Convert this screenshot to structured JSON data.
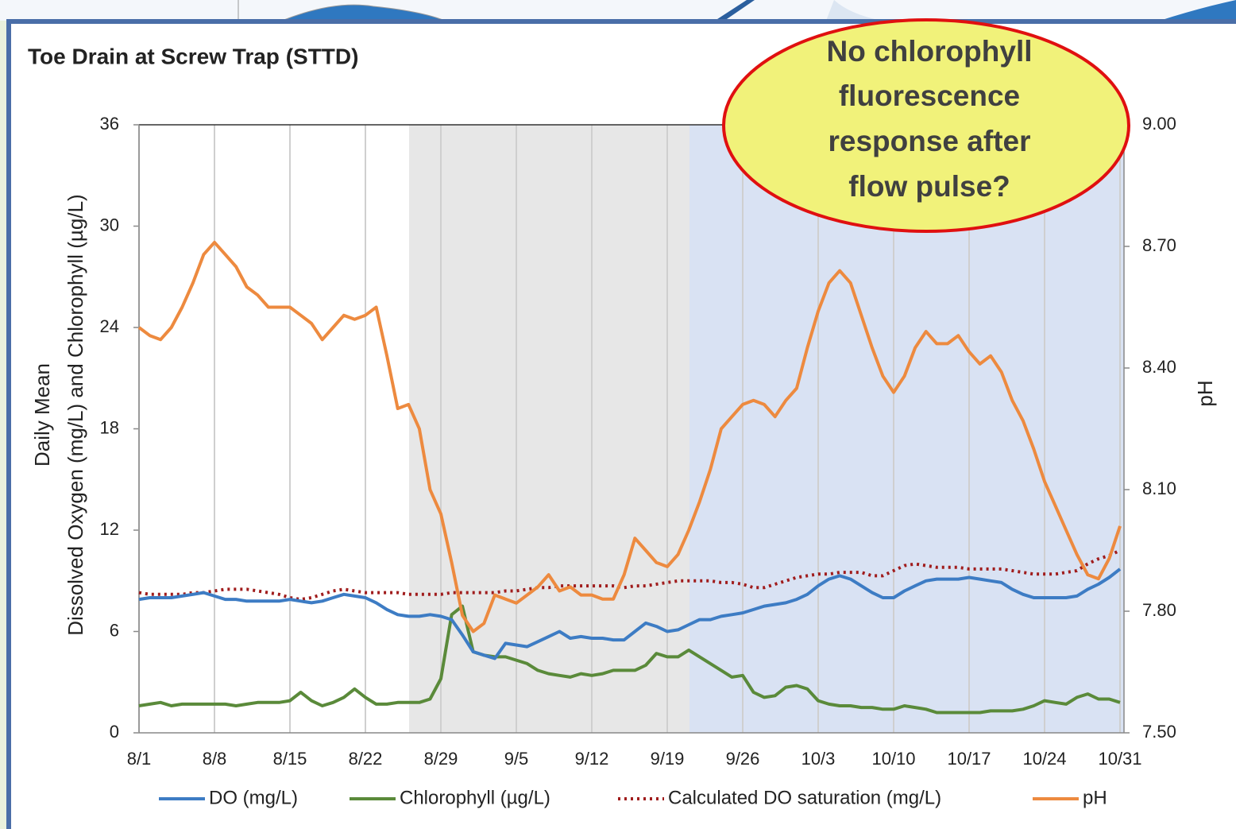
{
  "chart_data": {
    "type": "line",
    "title": "Toe Drain at Screw Trap (STTD)",
    "ylabel": [
      "Daily Mean",
      "Dissolved Oxygen (mg/L) and Chlorophyll (µg/L)"
    ],
    "y2label": "pH",
    "annotation": [
      "No chlorophyll",
      "fluorescence",
      "response after",
      "flow pulse?"
    ],
    "categories": [
      "8/1",
      null,
      null,
      null,
      null,
      null,
      null,
      "8/8",
      null,
      null,
      null,
      null,
      null,
      null,
      "8/15",
      null,
      null,
      null,
      null,
      null,
      null,
      "8/22",
      null,
      null,
      null,
      null,
      null,
      null,
      "8/29",
      null,
      null,
      null,
      null,
      null,
      null,
      "9/5",
      null,
      null,
      null,
      null,
      null,
      null,
      "9/12",
      null,
      null,
      null,
      null,
      null,
      null,
      "9/19",
      null,
      null,
      null,
      null,
      null,
      null,
      "9/26",
      null,
      null,
      null,
      null,
      null,
      null,
      "10/3",
      null,
      null,
      null,
      null,
      null,
      null,
      "10/10",
      null,
      null,
      null,
      null,
      null,
      null,
      "10/17",
      null,
      null,
      null,
      null,
      null,
      null,
      "10/24",
      null,
      null,
      null,
      null,
      null,
      null,
      "10/31"
    ],
    "ylim": [
      0,
      36
    ],
    "yticks": [
      0,
      6,
      12,
      18,
      24,
      30,
      36
    ],
    "y2lim": [
      7.5,
      9.0
    ],
    "y2ticks": [
      {
        "value": 7.5,
        "label": "7.50"
      },
      {
        "value": 7.8,
        "label": "7.80"
      },
      {
        "value": 8.1,
        "label": "8.10"
      },
      {
        "value": 8.4,
        "label": "8.40"
      },
      {
        "value": 8.7,
        "label": "8.70"
      },
      {
        "value": 9.0,
        "label": "9.00"
      }
    ],
    "grid": true,
    "legend": "bottom",
    "series": [
      {
        "name": "DO (mg/L)",
        "color": "#3d7cc4",
        "dash": "solid",
        "values": [
          7.9,
          8.0,
          8.0,
          8.0,
          8.1,
          8.2,
          8.3,
          8.1,
          7.9,
          7.9,
          7.8,
          7.8,
          7.8,
          7.8,
          7.9,
          7.8,
          7.7,
          7.8,
          8.0,
          8.2,
          8.1,
          8.0,
          7.7,
          7.3,
          7.0,
          6.9,
          6.9,
          7.0,
          6.9,
          6.7,
          5.8,
          4.8,
          4.6,
          4.4,
          5.3,
          5.2,
          5.1,
          5.4,
          5.7,
          6.0,
          5.6,
          5.7,
          5.6,
          5.6,
          5.5,
          5.5,
          6.0,
          6.5,
          6.3,
          6.0,
          6.1,
          6.4,
          6.7,
          6.7,
          6.9,
          7.0,
          7.1,
          7.3,
          7.5,
          7.6,
          7.7,
          7.9,
          8.2,
          8.7,
          9.1,
          9.3,
          9.1,
          8.7,
          8.3,
          8.0,
          8.0,
          8.4,
          8.7,
          9.0,
          9.1,
          9.1,
          9.1,
          9.2,
          9.1,
          9.0,
          8.9,
          8.5,
          8.2,
          8.0,
          8.0,
          8.0,
          8.0,
          8.1,
          8.5,
          8.8,
          9.2,
          9.7
        ]
      },
      {
        "name": "Chlorophyll (µg/L)",
        "color": "#5a8a3a",
        "dash": "solid",
        "values": [
          1.6,
          1.7,
          1.8,
          1.6,
          1.7,
          1.7,
          1.7,
          1.7,
          1.7,
          1.6,
          1.7,
          1.8,
          1.8,
          1.8,
          1.9,
          2.4,
          1.9,
          1.6,
          1.8,
          2.1,
          2.6,
          2.1,
          1.7,
          1.7,
          1.8,
          1.8,
          1.8,
          2.0,
          3.2,
          7.0,
          7.5,
          4.8,
          4.6,
          4.5,
          4.5,
          4.3,
          4.1,
          3.7,
          3.5,
          3.4,
          3.3,
          3.5,
          3.4,
          3.5,
          3.7,
          3.7,
          3.7,
          4.0,
          4.7,
          4.5,
          4.5,
          4.9,
          4.5,
          4.1,
          3.7,
          3.3,
          3.4,
          2.4,
          2.1,
          2.2,
          2.7,
          2.8,
          2.6,
          1.9,
          1.7,
          1.6,
          1.6,
          1.5,
          1.5,
          1.4,
          1.4,
          1.6,
          1.5,
          1.4,
          1.2,
          1.2,
          1.2,
          1.2,
          1.2,
          1.3,
          1.3,
          1.3,
          1.4,
          1.6,
          1.9,
          1.8,
          1.7,
          2.1,
          2.3,
          2.0,
          2.0,
          1.8
        ]
      },
      {
        "name": "Calculated DO saturation (mg/L)",
        "color": "#a01c1c",
        "dash": "dotted",
        "values": [
          8.3,
          8.2,
          8.2,
          8.2,
          8.2,
          8.3,
          8.3,
          8.4,
          8.5,
          8.5,
          8.5,
          8.4,
          8.3,
          8.2,
          8.0,
          7.9,
          8.0,
          8.2,
          8.4,
          8.5,
          8.4,
          8.3,
          8.3,
          8.3,
          8.3,
          8.2,
          8.2,
          8.2,
          8.2,
          8.3,
          8.3,
          8.3,
          8.3,
          8.3,
          8.4,
          8.4,
          8.5,
          8.6,
          8.6,
          8.7,
          8.7,
          8.7,
          8.7,
          8.7,
          8.7,
          8.6,
          8.7,
          8.7,
          8.8,
          8.9,
          9.0,
          9.0,
          9.0,
          9.0,
          8.9,
          8.9,
          8.8,
          8.6,
          8.6,
          8.8,
          9.0,
          9.2,
          9.3,
          9.4,
          9.4,
          9.5,
          9.5,
          9.5,
          9.3,
          9.3,
          9.6,
          9.9,
          10.0,
          9.9,
          9.8,
          9.8,
          9.8,
          9.7,
          9.7,
          9.7,
          9.7,
          9.6,
          9.5,
          9.4,
          9.4,
          9.4,
          9.5,
          9.6,
          10.0,
          10.3,
          10.5,
          10.8
        ]
      },
      {
        "name": "pH",
        "color": "#ed8a3f",
        "dash": "solid",
        "axis": "y2",
        "values": [
          8.5,
          8.48,
          8.47,
          8.5,
          8.55,
          8.61,
          8.68,
          8.71,
          8.68,
          8.65,
          8.6,
          8.58,
          8.55,
          8.55,
          8.55,
          8.53,
          8.51,
          8.47,
          8.5,
          8.53,
          8.52,
          8.53,
          8.55,
          8.43,
          8.3,
          8.31,
          8.25,
          8.1,
          8.04,
          7.92,
          7.79,
          7.75,
          7.77,
          7.84,
          7.83,
          7.82,
          7.84,
          7.86,
          7.89,
          7.85,
          7.86,
          7.84,
          7.84,
          7.83,
          7.83,
          7.89,
          7.98,
          7.95,
          7.92,
          7.91,
          7.94,
          8.0,
          8.07,
          8.15,
          8.25,
          8.28,
          8.31,
          8.32,
          8.31,
          8.28,
          8.32,
          8.35,
          8.45,
          8.54,
          8.61,
          8.64,
          8.61,
          8.53,
          8.45,
          8.38,
          8.34,
          8.38,
          8.45,
          8.49,
          8.46,
          8.46,
          8.48,
          8.44,
          8.41,
          8.43,
          8.39,
          8.32,
          8.27,
          8.2,
          8.12,
          8.06,
          8.0,
          7.94,
          7.89,
          7.88,
          7.93,
          8.01
        ]
      }
    ]
  }
}
